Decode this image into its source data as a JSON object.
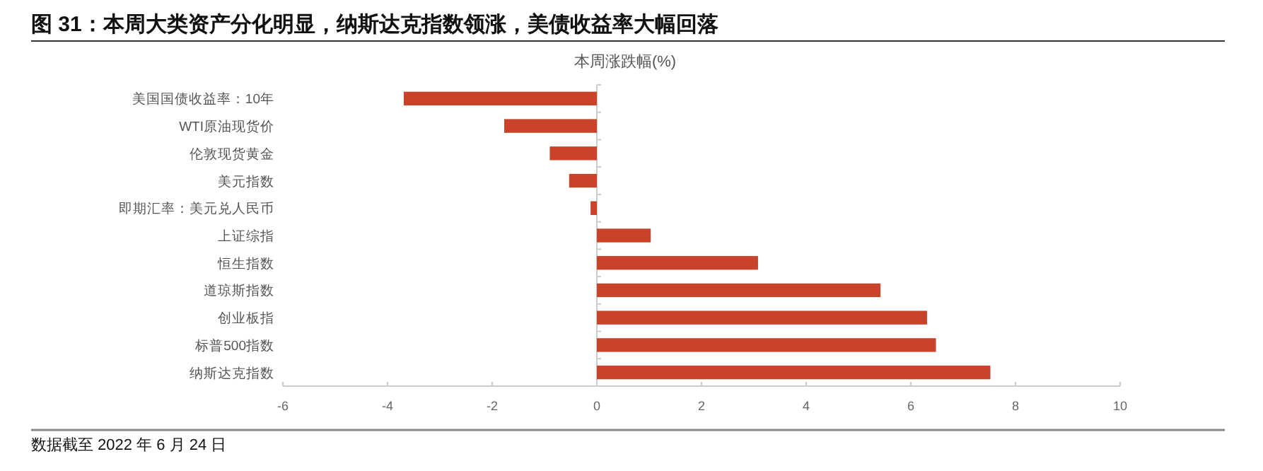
{
  "chart_data": {
    "type": "bar",
    "orientation": "horizontal",
    "title": "图 31：本周大类资产分化明显，纳斯达克指数领涨，美债收益率大幅回落",
    "subtitle": "本周涨跌幅(%)",
    "categories": [
      "美国国债收益率：10年",
      "WTI原油现货价",
      "伦敦现货黄金",
      "美元指数",
      "即期汇率：美元兑人民币",
      "上证综指",
      "恒生指数",
      "道琼斯指数",
      "创业板指",
      "标普500指数",
      "纳斯达克指数"
    ],
    "values": [
      -3.69,
      -1.77,
      -0.9,
      -0.53,
      -0.12,
      1.03,
      3.08,
      5.42,
      6.31,
      6.48,
      7.52
    ],
    "color": "#c8432a",
    "xlim": [
      -6,
      10
    ],
    "xticks": [
      -6,
      -4,
      -2,
      0,
      2,
      4,
      6,
      8,
      10
    ],
    "annotations": [
      "数据截至 2022 年 6 月 24 日"
    ]
  }
}
